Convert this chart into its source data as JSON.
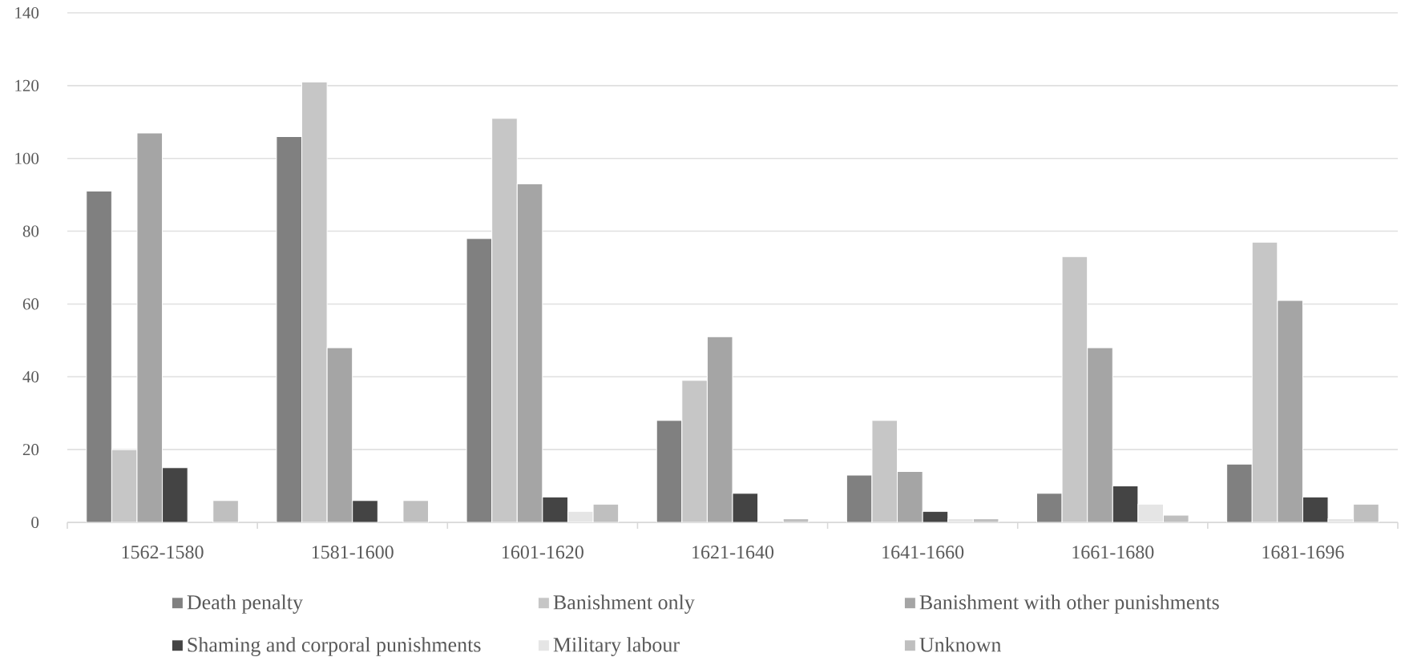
{
  "chart_data": {
    "type": "bar",
    "categories": [
      "1562-1580",
      "1581-1600",
      "1601-1620",
      "1621-1640",
      "1641-1660",
      "1661-1680",
      "1681-1696"
    ],
    "series": [
      {
        "name": "Death penalty",
        "color": "#808080",
        "values": [
          91,
          106,
          78,
          28,
          13,
          8,
          16
        ]
      },
      {
        "name": "Banishment only",
        "color": "#c6c6c6",
        "values": [
          20,
          121,
          111,
          39,
          28,
          73,
          77
        ]
      },
      {
        "name": "Banishment with other punishments",
        "color": "#a5a5a5",
        "values": [
          107,
          48,
          93,
          51,
          14,
          48,
          61
        ]
      },
      {
        "name": "Shaming and corporal punishments",
        "color": "#444444",
        "values": [
          15,
          6,
          7,
          8,
          3,
          10,
          7
        ]
      },
      {
        "name": "Military labour",
        "color": "#e5e5e5",
        "values": [
          null,
          null,
          3,
          null,
          1,
          5,
          1
        ]
      },
      {
        "name": "Unknown",
        "color": "#bfbfbf",
        "values": [
          6,
          6,
          5,
          1,
          1,
          2,
          5
        ]
      }
    ],
    "ylim": [
      0,
      140
    ],
    "yticks": [
      0,
      20,
      40,
      60,
      80,
      100,
      120,
      140
    ],
    "grid": "y",
    "legend": "bottom"
  }
}
